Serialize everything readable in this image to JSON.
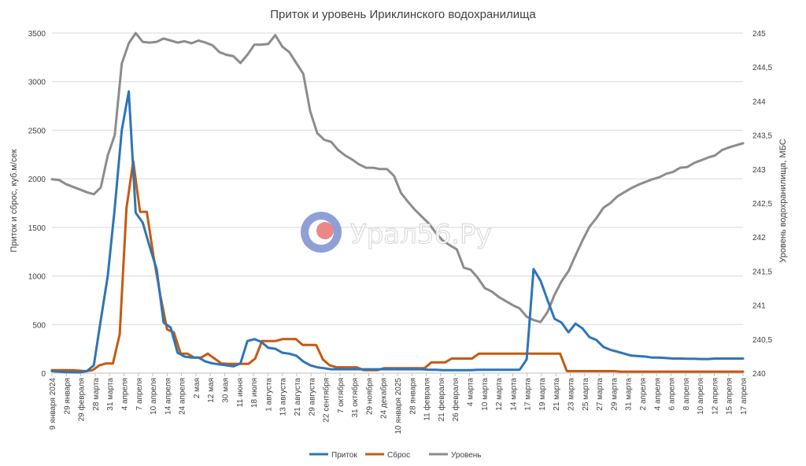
{
  "chart_data": {
    "type": "line",
    "title": "Приток и уровень Ириклинского водохранилища",
    "ylabel": "Приток и сброс, куб.м/сек",
    "y2label": "Уровень водохранилища, МБС",
    "ylim": [
      0,
      3500
    ],
    "y2lim": [
      240,
      245
    ],
    "yticks": [
      "0",
      "500",
      "1000",
      "1500",
      "2000",
      "2500",
      "3000",
      "3500"
    ],
    "y2ticks": [
      "240",
      "240,5",
      "241",
      "241,5",
      "242",
      "242,5",
      "243",
      "243,5",
      "244",
      "244,5",
      "245"
    ],
    "grid": true,
    "legend_position": "bottom",
    "x_tick_labels": [
      "9 января 2024",
      "29 января",
      "29 февраля",
      "28 марта",
      "31 марта",
      "4 апреля",
      "7 апреля",
      "10 апреля",
      "14 апреля",
      "24 апреля",
      "2 мая",
      "12 мая",
      "30 мая",
      "11 июня",
      "18 июля",
      "1 августа",
      "13 августа",
      "21 августа",
      "29 августа",
      "22 сентября",
      "7 октября",
      "31 октября",
      "29 ноября",
      "24 декабря",
      "10 января 2025",
      "28 января",
      "11 февраля",
      "21 февраля",
      "26 февраля",
      "4 марта",
      "10 марта",
      "12 марта",
      "14 марта",
      "17 марта",
      "19 марта",
      "21 марта",
      "23 марта",
      "25 марта",
      "27 марта",
      "29 марта",
      "31 марта",
      "2 апреля",
      "4 апреля",
      "6 апреля",
      "8 апреля",
      "10 апреля",
      "12 апреля",
      "15 апреля",
      "17 апреля"
    ],
    "series": [
      {
        "name": "Приток",
        "axis": "left",
        "color": "#2e75b6",
        "values": [
          20,
          15,
          10,
          8,
          8,
          20,
          80,
          550,
          1000,
          1700,
          2500,
          2900,
          1650,
          1550,
          1300,
          1070,
          520,
          470,
          210,
          170,
          160,
          160,
          120,
          100,
          90,
          80,
          70,
          100,
          330,
          350,
          320,
          260,
          250,
          210,
          200,
          180,
          120,
          80,
          60,
          50,
          40,
          40,
          40,
          40,
          40,
          40,
          40,
          40,
          40,
          40,
          40,
          40,
          40,
          40,
          35,
          35,
          30,
          30,
          30,
          30,
          30,
          35,
          35,
          35,
          35,
          35,
          35,
          35,
          140,
          1070,
          950,
          750,
          560,
          520,
          420,
          510,
          460,
          370,
          340,
          270,
          240,
          220,
          200,
          180,
          175,
          170,
          160,
          160,
          155,
          150,
          150,
          148,
          148,
          145,
          145,
          150,
          150,
          150,
          150,
          150
        ]
      },
      {
        "name": "Сброс",
        "axis": "left",
        "color": "#c55a11",
        "values": [
          30,
          30,
          30,
          30,
          25,
          20,
          30,
          80,
          100,
          100,
          400,
          1700,
          2180,
          1660,
          1660,
          1200,
          800,
          450,
          420,
          200,
          200,
          160,
          160,
          200,
          150,
          100,
          95,
          95,
          95,
          95,
          150,
          330,
          330,
          330,
          350,
          350,
          350,
          290,
          290,
          290,
          140,
          80,
          60,
          60,
          60,
          60,
          30,
          30,
          30,
          50,
          50,
          50,
          50,
          50,
          50,
          50,
          110,
          110,
          110,
          150,
          150,
          150,
          150,
          200,
          200,
          200,
          200,
          200,
          200,
          200,
          200,
          200,
          200,
          200,
          200,
          200,
          20,
          20,
          20,
          20,
          20,
          20,
          20,
          20,
          15,
          15,
          15,
          15,
          15,
          15,
          15,
          15,
          15,
          15,
          15,
          15,
          15,
          15,
          15,
          15,
          15,
          15,
          15
        ]
      },
      {
        "name": "Уровень",
        "axis": "right",
        "color": "#8c8c8c",
        "values": [
          242.85,
          242.84,
          242.78,
          242.74,
          242.7,
          242.66,
          242.63,
          242.73,
          243.2,
          243.5,
          244.55,
          244.85,
          245.0,
          244.87,
          244.86,
          244.87,
          244.92,
          244.89,
          244.86,
          244.88,
          244.85,
          244.89,
          244.86,
          244.82,
          244.72,
          244.68,
          244.66,
          244.56,
          244.68,
          244.83,
          244.83,
          244.84,
          244.97,
          244.8,
          244.72,
          244.56,
          244.4,
          243.85,
          243.53,
          243.43,
          243.4,
          243.28,
          243.2,
          243.14,
          243.07,
          243.02,
          243.02,
          243.0,
          243.0,
          242.9,
          242.65,
          242.52,
          242.4,
          242.3,
          242.2,
          242.06,
          241.95,
          241.88,
          241.82,
          241.55,
          241.52,
          241.4,
          241.25,
          241.2,
          241.12,
          241.06,
          241.0,
          240.95,
          240.83,
          240.78,
          240.75,
          240.9,
          241.15,
          241.35,
          241.5,
          241.73,
          241.95,
          242.15,
          242.28,
          242.43,
          242.5,
          242.6,
          242.66,
          242.72,
          242.77,
          242.81,
          242.85,
          242.88,
          242.93,
          242.96,
          243.02,
          243.03,
          243.09,
          243.13,
          243.17,
          243.2,
          243.28,
          243.32,
          243.35,
          243.38
        ]
      }
    ]
  },
  "watermark": {
    "text": "Урал56.Ру",
    "logo_outer_color": "#7b8fd0",
    "logo_inner_color": "#ffffff",
    "logo_dot_color": "#e97a7a"
  }
}
